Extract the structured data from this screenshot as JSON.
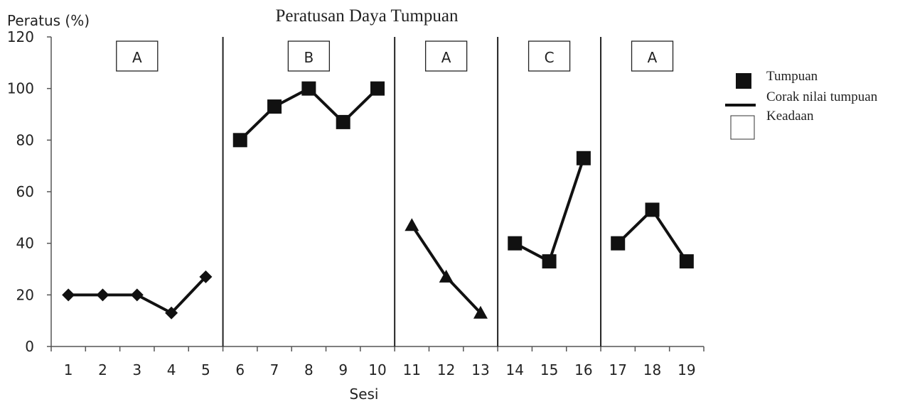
{
  "chart_data": {
    "type": "line",
    "title": "Peratusan Daya Tumpuan",
    "ylabel": "Peratus (%)",
    "xlabel": "Sesi",
    "ylim": [
      0,
      120
    ],
    "yticks": [
      0,
      20,
      40,
      60,
      80,
      100,
      120
    ],
    "x": [
      1,
      2,
      3,
      4,
      5,
      6,
      7,
      8,
      9,
      10,
      11,
      12,
      13,
      14,
      15,
      16,
      17,
      18,
      19
    ],
    "phases": [
      {
        "label": "A",
        "sessions": [
          1,
          2,
          3,
          4,
          5
        ],
        "values": [
          20,
          20,
          20,
          13,
          27
        ],
        "marker": "diamond"
      },
      {
        "label": "B",
        "sessions": [
          6,
          7,
          8,
          9,
          10
        ],
        "values": [
          80,
          93,
          100,
          87,
          100
        ],
        "marker": "square"
      },
      {
        "label": "A",
        "sessions": [
          11,
          12,
          13
        ],
        "values": [
          47,
          27,
          13
        ],
        "marker": "triangle"
      },
      {
        "label": "C",
        "sessions": [
          14,
          15,
          16
        ],
        "values": [
          40,
          33,
          73
        ],
        "marker": "square"
      },
      {
        "label": "A",
        "sessions": [
          17,
          18,
          19
        ],
        "values": [
          40,
          53,
          33
        ],
        "marker": "square"
      }
    ],
    "legend": {
      "placement": "right",
      "items": [
        "Tumpuan",
        "Corak nilai tumpuan",
        "Keadaan"
      ]
    },
    "grid": false
  }
}
